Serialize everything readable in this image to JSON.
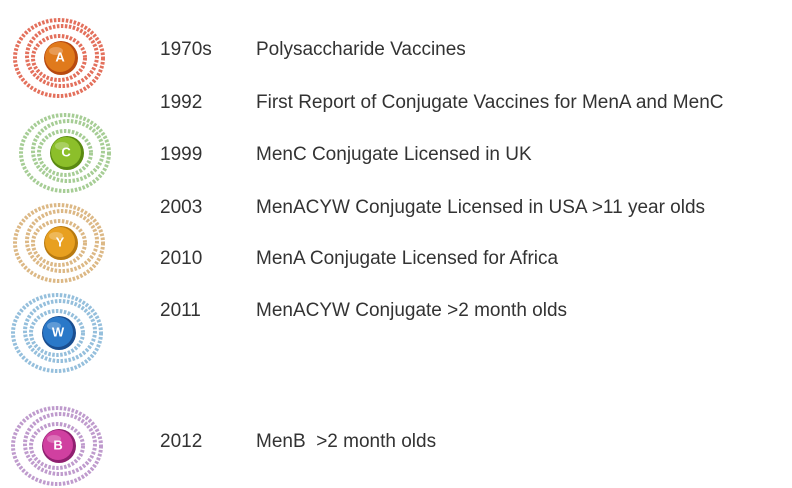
{
  "icons": [
    {
      "label": "A"
    },
    {
      "label": "C"
    },
    {
      "label": "Y"
    },
    {
      "label": "W"
    },
    {
      "label": "B"
    }
  ],
  "timeline": [
    {
      "year": "1970s",
      "event": "Polysaccharide Vaccines"
    },
    {
      "year": "1992",
      "event": "First Report of Conjugate Vaccines for MenA and MenC"
    },
    {
      "year": "1999",
      "event": "MenC Conjugate Licensed in UK"
    },
    {
      "year": "2003",
      "event": "MenACYW Conjugate Licensed in USA >11 year olds"
    },
    {
      "year": "2010",
      "event": "MenA Conjugate Licensed for Africa"
    },
    {
      "year": "2011",
      "event": "MenACYW Conjugate >2 month olds"
    },
    {
      "year": "2012",
      "event": "MenB  >2 month olds"
    }
  ]
}
